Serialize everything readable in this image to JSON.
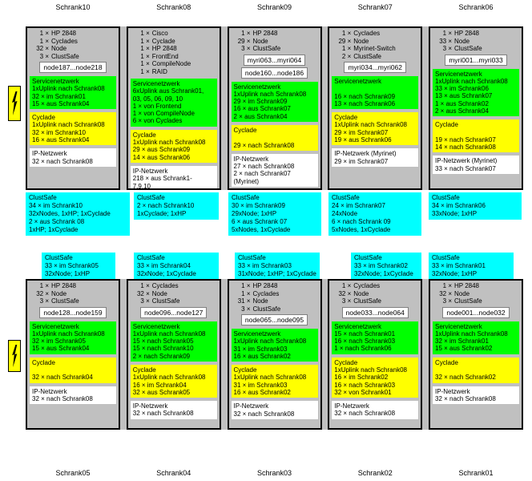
{
  "colors": {
    "cabinet_gray": "#c0c0c0",
    "service_green": "#00ff00",
    "cyclade_yellow": "#ffff00",
    "ip_white": "#ffffff",
    "clustsafe_cyan": "#00ffff",
    "power_yellow": "#ffff00",
    "text": "#000000"
  },
  "top_labels": [
    "Schrank10",
    "Schrank08",
    "Schrank09",
    "Schrank07",
    "Schrank06"
  ],
  "bottom_labels": [
    "Schrank05",
    "Schrank04",
    "Schrank03",
    "Schrank02",
    "Schrank01"
  ],
  "power_icons": [
    "lightning-top-row",
    "lightning-bottom-row"
  ],
  "cabinets": [
    {
      "id": "Schrank10",
      "hardware": [
        {
          "count": "1 ×",
          "name": "HP 2848"
        },
        {
          "count": "1 ×",
          "name": "Cyclades"
        },
        {
          "count": "32 ×",
          "name": "Node"
        },
        {
          "count": "3 ×",
          "name": "ClustSafe"
        }
      ],
      "node_labels": [
        "node187...node218"
      ],
      "sections": [
        {
          "type": "servicenetzwerk",
          "color": "green",
          "lines": [
            "Servicenetzwerk",
            "1xUplink nach Schrank08",
            "32 × im Schrank01",
            "15 × aus Schrank04"
          ]
        },
        {
          "type": "cyclade",
          "color": "yellow",
          "lines": [
            "Cyclade",
            "1xUplink nach Schrank08",
            "32 × im Schrank10",
            "16 × aus Schrank04"
          ]
        },
        {
          "type": "ip-netzwerk",
          "color": "white",
          "lines": [
            "IP-Netzwerk",
            "32 × nach Schrank08"
          ]
        }
      ]
    },
    {
      "id": "Schrank08",
      "hardware": [
        {
          "count": "1 ×",
          "name": "Cisco"
        },
        {
          "count": "1 ×",
          "name": "Cyclade"
        },
        {
          "count": "1 ×",
          "name": "HP 2848"
        },
        {
          "count": "1 ×",
          "name": "FrontEnd"
        },
        {
          "count": "1 ×",
          "name": "CompileNode"
        },
        {
          "count": "1 ×",
          "name": "RAID"
        }
      ],
      "node_labels": [],
      "sections": [
        {
          "type": "servicenetzwerk",
          "color": "green",
          "lines": [
            "Servicenetzwerk",
            "6xUplink aus Schrank01,",
            "03, 05, 06, 09, 10",
            "1 × von Frontend",
            "1 ×  von CompileNode",
            "6 × von Cyclades"
          ]
        },
        {
          "type": "cyclade",
          "color": "yellow",
          "lines": [
            "Cyclade",
            "1xUplink nach Schrank08",
            "29 × aus Schrank09",
            "14 × aus Schrank06"
          ]
        },
        {
          "type": "ip-netzwerk",
          "color": "white",
          "lines": [
            "IP-Netzwerk",
            "218 × aus Schrank1-",
            "7,9,10"
          ]
        }
      ]
    },
    {
      "id": "Schrank09",
      "hardware": [
        {
          "count": "1 ×",
          "name": "HP 2848"
        },
        {
          "count": "29 ×",
          "name": "Node"
        },
        {
          "count": "3 ×",
          "name": "ClustSafe"
        }
      ],
      "node_labels": [
        "myri063...myri064",
        "node160...node186"
      ],
      "sections": [
        {
          "type": "servicenetzwerk",
          "color": "green",
          "lines": [
            "Servicenetzwerk",
            "1xUplink nach Schrank08",
            "29 × im Schrank09",
            "16 × aus Schrank07",
            "2 × aus Schrank04"
          ]
        },
        {
          "type": "cyclade",
          "color": "yellow",
          "lines": [
            "Cyclade",
            "",
            "29 × nach Schrank08"
          ]
        },
        {
          "type": "ip-netzwerk",
          "color": "white",
          "lines": [
            "IP-Netzwerk",
            "27 × nach Schrank08",
            "2 × nach Schrank07",
            "(Myrinet)"
          ]
        }
      ]
    },
    {
      "id": "Schrank07",
      "hardware": [
        {
          "count": "1 ×",
          "name": "Cyclades"
        },
        {
          "count": "29 ×",
          "name": "Node"
        },
        {
          "count": "1 ×",
          "name": "Myrinet-Switch"
        },
        {
          "count": "2 ×",
          "name": "ClustSafe"
        }
      ],
      "node_labels": [
        "myri034...myri062"
      ],
      "sections": [
        {
          "type": "servicenetzwerk",
          "color": "green",
          "lines": [
            "Servicenetzwerk",
            "",
            "16 × nach Schrank09",
            "13 × nach Schrank06"
          ]
        },
        {
          "type": "cyclade",
          "color": "yellow",
          "lines": [
            "Cyclade",
            "1xUplink nach Schrank08",
            "29 × im Schrank07",
            "19 × aus Schrank06"
          ]
        },
        {
          "type": "ip-netzwerk",
          "color": "white",
          "lines": [
            "IP-Netzwerk (Myrinet)",
            "29 × im Schrank07"
          ]
        }
      ]
    },
    {
      "id": "Schrank06",
      "hardware": [
        {
          "count": "1 ×",
          "name": "HP 2848"
        },
        {
          "count": "33 ×",
          "name": "Node"
        },
        {
          "count": "3 ×",
          "name": "ClustSafe"
        }
      ],
      "node_labels": [
        "myri001...myri033"
      ],
      "sections": [
        {
          "type": "servicenetzwerk",
          "color": "green",
          "lines": [
            "Servicenetzwerk",
            "1xUplink nach Schrank08",
            "33 × im Schrank06",
            "13 × aus Schrank07",
            "1 × aus Schrank02",
            "2 × aus Schrank04"
          ]
        },
        {
          "type": "cyclade",
          "color": "yellow",
          "lines": [
            "Cyclade",
            "",
            "19 × nach Schrank07",
            "14 × nach Schrank08"
          ]
        },
        {
          "type": "ip-netzwerk",
          "color": "white",
          "lines": [
            "IP-Netzwerk (Myrinet)",
            "33 × nach Schrank07"
          ]
        }
      ]
    },
    {
      "id": "Schrank05",
      "hardware": [
        {
          "count": "1 ×",
          "name": "HP 2848"
        },
        {
          "count": "32 ×",
          "name": "Node"
        },
        {
          "count": "3 ×",
          "name": "ClustSafe"
        }
      ],
      "node_labels": [
        "node128...node159"
      ],
      "sections": [
        {
          "type": "servicenetzwerk",
          "color": "green",
          "lines": [
            "Servicenetzwerk",
            "1xUplink nach Schrank08",
            "32 × im Schrank05",
            "15 × aus Schrank04"
          ]
        },
        {
          "type": "cyclade",
          "color": "yellow",
          "lines": [
            "Cyclade",
            "",
            "32 × nach Schrank04"
          ]
        },
        {
          "type": "ip-netzwerk",
          "color": "white",
          "lines": [
            "IP-Netzwerk",
            "32 × nach Schrank08"
          ]
        }
      ]
    },
    {
      "id": "Schrank04",
      "hardware": [
        {
          "count": "1 ×",
          "name": "Cyclades"
        },
        {
          "count": "32 ×",
          "name": "Node"
        },
        {
          "count": "3 ×",
          "name": "ClustSafe"
        }
      ],
      "node_labels": [
        "node096...node127"
      ],
      "sections": [
        {
          "type": "servicenetzwerk",
          "color": "green",
          "lines": [
            "Servicenetzwerk",
            "1xUplink nach Schrank08",
            "15 × nach Schrank05",
            "15 × nach Schrank10",
            "2 × nach Schrank09"
          ]
        },
        {
          "type": "cyclade",
          "color": "yellow",
          "lines": [
            "Cyclade",
            "1xUplink nach Schrank08",
            "16 × im Schrank04",
            "32 × aus Schrank05"
          ]
        },
        {
          "type": "ip-netzwerk",
          "color": "white",
          "lines": [
            "IP-Netzwerk",
            "32 × nach Schrank08"
          ]
        }
      ]
    },
    {
      "id": "Schrank03",
      "hardware": [
        {
          "count": "1 ×",
          "name": "HP 2848"
        },
        {
          "count": "1 ×",
          "name": "Cyclades"
        },
        {
          "count": "31 ×",
          "name": "Node"
        },
        {
          "count": "3 ×",
          "name": "ClustSafe"
        }
      ],
      "node_labels": [
        "node065...node095"
      ],
      "sections": [
        {
          "type": "servicenetzwerk",
          "color": "green",
          "lines": [
            "Servicenetzwerk",
            "1xUplink nach Schrank08",
            "31 × im Schrank03",
            "16 × aus Schrank02"
          ]
        },
        {
          "type": "cyclade",
          "color": "yellow",
          "lines": [
            "Cyclade",
            "1xUplink nach Schrank08",
            "31 × im Schrank03",
            "16 × aus Schrank02"
          ]
        },
        {
          "type": "ip-netzwerk",
          "color": "white",
          "lines": [
            "IP-Netzwerk",
            "32 × nach Schrank08"
          ]
        }
      ]
    },
    {
      "id": "Schrank02",
      "hardware": [
        {
          "count": "1 ×",
          "name": "Cyclades"
        },
        {
          "count": "32 ×",
          "name": "Node"
        },
        {
          "count": "3 ×",
          "name": "ClustSafe"
        }
      ],
      "node_labels": [
        "node033...node064"
      ],
      "sections": [
        {
          "type": "servicenetzwerk",
          "color": "green",
          "lines": [
            "Servicenetzwerk",
            "15 × nach Schrank01",
            "16 × nach Schrank03",
            "1 × nach Schrank06"
          ]
        },
        {
          "type": "cyclade",
          "color": "yellow",
          "lines": [
            "Cyclade",
            "1xUplink nach Schrank08",
            "16 × im Schrank02",
            "16 × nach Schrank03",
            "32 × von Schrank01"
          ]
        },
        {
          "type": "ip-netzwerk",
          "color": "white",
          "lines": [
            "IP-Netzwerk",
            "32 × nach Schrank08"
          ]
        }
      ]
    },
    {
      "id": "Schrank01",
      "hardware": [
        {
          "count": "1 ×",
          "name": "HP 2848"
        },
        {
          "count": "32 ×",
          "name": "Node"
        },
        {
          "count": "3 ×",
          "name": "ClustSafe"
        }
      ],
      "node_labels": [
        "node001...node032"
      ],
      "sections": [
        {
          "type": "servicenetzwerk",
          "color": "green",
          "lines": [
            "Servicenetzwerk",
            "1xUplink nach Schrank08",
            "32 × im Schrank01",
            "15 × aus Schrank02"
          ]
        },
        {
          "type": "cyclade",
          "color": "yellow",
          "lines": [
            "Cyclade",
            "",
            "32 × nach Schrank02"
          ]
        },
        {
          "type": "ip-netzwerk",
          "color": "white",
          "lines": [
            "IP-Netzwerk",
            "32 × nach Schrank08"
          ]
        }
      ]
    }
  ],
  "clustsafe_row_upper": [
    {
      "lines": [
        "ClustSafe",
        "34 × im Schrank10",
        "32xNodes, 1xHP; 1xCyclade",
        "2 × aus Schrank 08",
        "1xHP; 1xCyclade"
      ]
    },
    {
      "lines": [
        "ClustSafe",
        "2 × nach Schrank10",
        "1xCyclade; 1xHP"
      ]
    },
    {
      "lines": [
        "ClustSafe",
        "30 × im Schrank09",
        "29xNode; 1xHP",
        "6 × aus Schrank 07",
        "5xNodes, 1xCyclade"
      ]
    },
    {
      "lines": [
        "ClustSafe",
        "24 × im Schrank07",
        "24xNode",
        "6 × nach Schrank 09",
        "5xNodes, 1xCyclade"
      ]
    },
    {
      "lines": [
        "ClustSafe",
        "34 × im Schrank06",
        "33xNode; 1xHP"
      ]
    }
  ],
  "clustsafe_row_lower": [
    {
      "lines": [
        "ClustSafe",
        "33 × im Schrank05",
        "32xNode; 1xHP"
      ]
    },
    {
      "lines": [
        "ClustSafe",
        "33 × im Schrank04",
        "32xNode; 1xCyclade"
      ]
    },
    {
      "lines": [
        "ClustSafe",
        "33 × im Schrank03",
        "31xNode; 1xHP; 1xCyclade"
      ]
    },
    {
      "lines": [
        "ClustSafe",
        "33 × im Schrank02",
        "32xNode; 1xCyclade"
      ]
    },
    {
      "lines": [
        "ClustSafe",
        "33 × im Schrank01",
        "32xNode; 1xHP"
      ]
    }
  ]
}
